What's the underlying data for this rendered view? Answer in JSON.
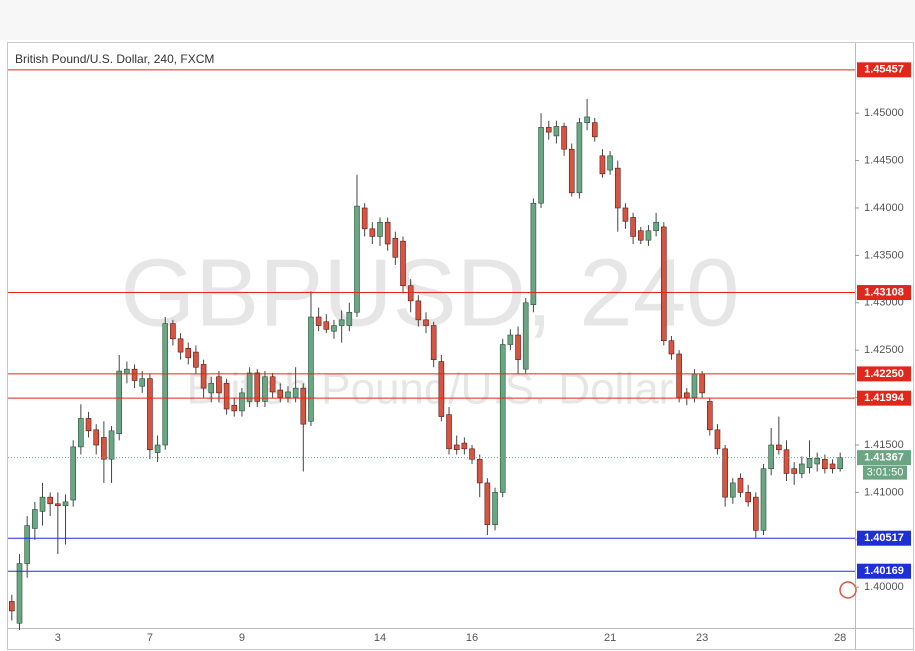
{
  "chart_data": {
    "type": "candlestick",
    "title": "British Pound/U.S. Dollar, 240, FXCM",
    "watermark": "GBPUSD, 240",
    "watermark_subtitle": "British Pound/U.S. Dollar",
    "categories": [
      null,
      null,
      null,
      null,
      null,
      null,
      "3",
      null,
      null,
      null,
      null,
      null,
      null,
      null,
      null,
      null,
      null,
      null,
      "7",
      null,
      null,
      null,
      null,
      null,
      null,
      null,
      null,
      null,
      null,
      null,
      "9",
      null,
      null,
      null,
      null,
      null,
      null,
      null,
      null,
      null,
      null,
      null,
      null,
      null,
      null,
      null,
      null,
      null,
      "14",
      null,
      null,
      null,
      null,
      null,
      null,
      null,
      null,
      null,
      null,
      null,
      "16",
      null,
      null,
      null,
      null,
      null,
      null,
      null,
      null,
      null,
      null,
      null,
      null,
      null,
      null,
      null,
      null,
      null,
      "21",
      null,
      null,
      null,
      null,
      null,
      null,
      null,
      null,
      null,
      null,
      null,
      "23",
      null,
      null,
      null,
      null,
      null,
      null,
      null,
      null,
      null,
      null,
      null,
      null,
      null,
      null,
      null,
      null,
      null,
      "28"
    ],
    "open": [
      1.3985,
      1.3962,
      1.4025,
      1.4062,
      1.408,
      1.4095,
      1.4088,
      1.4086,
      1.4092,
      1.4148,
      1.4178,
      1.4166,
      1.4158,
      1.4135,
      1.4162,
      1.4225,
      1.423,
      1.4212,
      1.422,
      1.4142,
      1.415,
      1.4278,
      1.4262,
      1.4252,
      1.4248,
      1.4235,
      1.4205,
      1.4222,
      1.4215,
      1.4192,
      1.4186,
      1.4196,
      1.4226,
      1.4196,
      1.4222,
      1.4208,
      1.42,
      1.42,
      1.421,
      1.4175,
      1.4285,
      1.428,
      1.427,
      1.4276,
      1.4276,
      1.429,
      1.44,
      1.4378,
      1.437,
      1.4385,
      1.4368,
      1.4365,
      1.4318,
      1.4302,
      1.4282,
      1.4276,
      1.4238,
      1.4182,
      1.415,
      1.4152,
      1.4146,
      1.4135,
      1.411,
      1.4066,
      1.41,
      1.4256,
      1.4266,
      1.423,
      1.4298,
      1.4405,
      1.4485,
      1.4476,
      1.4486,
      1.4462,
      1.4416,
      1.449,
      1.449,
      1.4455,
      1.444,
      1.4442,
      1.44,
      1.439,
      1.4376,
      1.4366,
      1.4376,
      1.438,
      1.426,
      1.4246,
      1.4205,
      1.42,
      1.4225,
      1.4196,
      1.4166,
      1.4146,
      1.4095,
      1.4115,
      1.41,
      1.4095,
      1.406,
      1.4125,
      1.415,
      1.4145,
      1.4125,
      1.412,
      1.4126,
      1.413,
      1.4135,
      1.413,
      1.4125
    ],
    "high": [
      1.3992,
      1.4035,
      1.4075,
      1.409,
      1.411,
      1.41,
      1.41,
      1.4098,
      1.4155,
      1.4193,
      1.4185,
      1.4172,
      1.4175,
      1.417,
      1.4245,
      1.4238,
      1.4235,
      1.4228,
      1.4225,
      1.416,
      1.4285,
      1.4282,
      1.4268,
      1.4258,
      1.4255,
      1.424,
      1.4222,
      1.4228,
      1.422,
      1.42,
      1.421,
      1.4232,
      1.423,
      1.4228,
      1.4226,
      1.4215,
      1.4212,
      1.4232,
      1.4215,
      1.4312,
      1.4295,
      1.4288,
      1.4282,
      1.4292,
      1.43,
      1.4435,
      1.4405,
      1.4385,
      1.439,
      1.439,
      1.4375,
      1.437,
      1.4325,
      1.4308,
      1.429,
      1.428,
      1.4245,
      1.419,
      1.416,
      1.4158,
      1.415,
      1.414,
      1.4115,
      1.4105,
      1.4262,
      1.4272,
      1.4275,
      1.4305,
      1.441,
      1.45,
      1.4492,
      1.4492,
      1.449,
      1.4468,
      1.4495,
      1.4515,
      1.4495,
      1.4462,
      1.446,
      1.445,
      1.4405,
      1.4395,
      1.438,
      1.4382,
      1.4395,
      1.4385,
      1.4265,
      1.425,
      1.421,
      1.423,
      1.4228,
      1.42,
      1.4172,
      1.415,
      1.4115,
      1.412,
      1.4108,
      1.41,
      1.413,
      1.4168,
      1.418,
      1.4155,
      1.4132,
      1.4138,
      1.4155,
      1.4142,
      1.414,
      1.4135,
      1.4142
    ],
    "low": [
      1.3965,
      1.3955,
      1.401,
      1.405,
      1.4065,
      1.4075,
      1.4035,
      1.4045,
      1.4085,
      1.414,
      1.4158,
      1.414,
      1.411,
      1.411,
      1.4155,
      1.4215,
      1.421,
      1.4205,
      1.4135,
      1.4132,
      1.4145,
      1.4255,
      1.424,
      1.4235,
      1.4225,
      1.42,
      1.4195,
      1.4195,
      1.4182,
      1.418,
      1.418,
      1.419,
      1.419,
      1.419,
      1.42,
      1.4195,
      1.4195,
      1.4195,
      1.4122,
      1.417,
      1.427,
      1.4268,
      1.4262,
      1.4258,
      1.427,
      1.4285,
      1.437,
      1.4362,
      1.436,
      1.4355,
      1.434,
      1.431,
      1.429,
      1.4275,
      1.4268,
      1.4232,
      1.4175,
      1.414,
      1.414,
      1.414,
      1.413,
      1.4095,
      1.4055,
      1.406,
      1.4095,
      1.425,
      1.4225,
      1.4225,
      1.429,
      1.44,
      1.4472,
      1.4468,
      1.4455,
      1.4412,
      1.441,
      1.4482,
      1.447,
      1.4432,
      1.4435,
      1.4375,
      1.4378,
      1.4362,
      1.4362,
      1.436,
      1.437,
      1.4255,
      1.424,
      1.4195,
      1.4192,
      1.4195,
      1.42,
      1.416,
      1.414,
      1.4085,
      1.4088,
      1.4095,
      1.4085,
      1.4052,
      1.4055,
      1.4118,
      1.414,
      1.4112,
      1.4108,
      1.4115,
      1.412,
      1.4122,
      1.412,
      1.412,
      1.4122
    ],
    "close": [
      1.3975,
      1.4025,
      1.4065,
      1.4082,
      1.4095,
      1.4088,
      1.4086,
      1.409,
      1.4148,
      1.4178,
      1.4165,
      1.415,
      1.4135,
      1.4165,
      1.4228,
      1.423,
      1.4218,
      1.422,
      1.4145,
      1.415,
      1.4278,
      1.4262,
      1.4248,
      1.4242,
      1.4232,
      1.421,
      1.4215,
      1.4205,
      1.4188,
      1.4186,
      1.4205,
      1.4226,
      1.4196,
      1.4222,
      1.4206,
      1.42,
      1.4206,
      1.421,
      1.4172,
      1.4285,
      1.4276,
      1.4272,
      1.4276,
      1.4282,
      1.429,
      1.4402,
      1.4378,
      1.437,
      1.4385,
      1.4362,
      1.4348,
      1.4318,
      1.4302,
      1.4282,
      1.4276,
      1.424,
      1.418,
      1.4146,
      1.4145,
      1.4146,
      1.4135,
      1.411,
      1.4066,
      1.41,
      1.4256,
      1.4266,
      1.424,
      1.43,
      1.4405,
      1.4485,
      1.448,
      1.4486,
      1.4462,
      1.4416,
      1.449,
      1.4496,
      1.4475,
      1.4436,
      1.4455,
      1.44,
      1.4386,
      1.437,
      1.4366,
      1.4376,
      1.4385,
      1.426,
      1.4246,
      1.42,
      1.42,
      1.4225,
      1.4205,
      1.4166,
      1.4146,
      1.4095,
      1.411,
      1.41,
      1.409,
      1.406,
      1.4125,
      1.415,
      1.4145,
      1.412,
      1.412,
      1.413,
      1.4136,
      1.4136,
      1.4125,
      1.4125,
      1.41367
    ],
    "up_color": "#6ba583",
    "down_color": "#d75442",
    "ylim": [
      1.3957,
      1.4574
    ],
    "yticks": [
      {
        "value": 1.4,
        "label": "1.40000"
      },
      {
        "value": 1.405,
        "label": "1.40500"
      },
      {
        "value": 1.41,
        "label": "1.41000"
      },
      {
        "value": 1.415,
        "label": "1.41500"
      },
      {
        "value": 1.42,
        "label": "1.42000"
      },
      {
        "value": 1.425,
        "label": "1.42500"
      },
      {
        "value": 1.43,
        "label": "1.43000"
      },
      {
        "value": 1.435,
        "label": "1.43500"
      },
      {
        "value": 1.44,
        "label": "1.44000"
      },
      {
        "value": 1.445,
        "label": "1.44500"
      },
      {
        "value": 1.45,
        "label": "1.45000"
      }
    ],
    "levels": [
      {
        "value": 1.45457,
        "label": "1.45457",
        "color": "#e0271a"
      },
      {
        "value": 1.43108,
        "label": "1.43108",
        "color": "#e0271a"
      },
      {
        "value": 1.4225,
        "label": "1.42250",
        "color": "#e0271a"
      },
      {
        "value": 1.41994,
        "label": "1.41994",
        "color": "#e0271a"
      },
      {
        "value": 1.40517,
        "label": "1.40517",
        "color": "#1f2fd6"
      },
      {
        "value": 1.40169,
        "label": "1.40169",
        "color": "#1f2fd6"
      }
    ],
    "current_price": {
      "value": 1.41367,
      "label": "1.41367",
      "countdown": "3:01:50",
      "color": "#6ba583"
    }
  }
}
